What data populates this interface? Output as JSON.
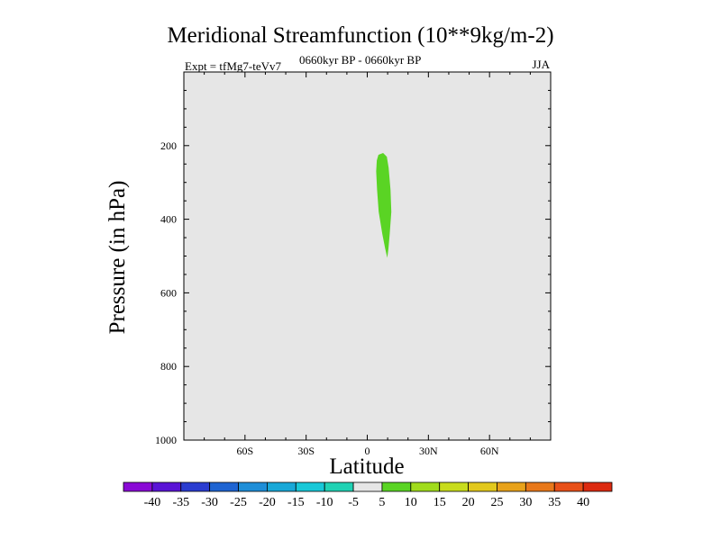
{
  "chart_data": {
    "type": "heatmap",
    "title": "Meridional Streamfunction (10**9kg/m-2)",
    "subtitle_left": "Expt = tfMg7-teVv7",
    "subtitle_center": "0660kyr BP - 0660kyr BP",
    "subtitle_right": "JJA",
    "xlabel": "Latitude",
    "ylabel": "Pressure (in hPa)",
    "xlim": [
      -90,
      90
    ],
    "ylim": [
      0,
      1000
    ],
    "y_inverted": true,
    "x_ticks": [
      {
        "value": -60,
        "label": "60S"
      },
      {
        "value": -30,
        "label": "30S"
      },
      {
        "value": 0,
        "label": "0"
      },
      {
        "value": 30,
        "label": "30N"
      },
      {
        "value": 60,
        "label": "60N"
      }
    ],
    "y_ticks": [
      {
        "value": 200,
        "label": "200"
      },
      {
        "value": 400,
        "label": "400"
      },
      {
        "value": 600,
        "label": "600"
      },
      {
        "value": 800,
        "label": "800"
      },
      {
        "value": 1000,
        "label": "1000"
      }
    ],
    "background_color": "#e6e6e6",
    "shaded_regions": [
      {
        "range": [
          5,
          10
        ],
        "color": "#5ad424",
        "outline": [
          [
            5.5,
            225
          ],
          [
            7.8,
            220
          ],
          [
            9.6,
            230
          ],
          [
            10.5,
            260
          ],
          [
            11.4,
            320
          ],
          [
            11.8,
            380
          ],
          [
            11.0,
            440
          ],
          [
            10.4,
            480
          ],
          [
            9.8,
            505
          ],
          [
            8.8,
            480
          ],
          [
            7.4,
            440
          ],
          [
            5.6,
            380
          ],
          [
            4.8,
            320
          ],
          [
            4.4,
            270
          ],
          [
            4.7,
            240
          ]
        ]
      }
    ],
    "colorbar": {
      "labels": [
        "-40",
        "-35",
        "-30",
        "-25",
        "-20",
        "-15",
        "-10",
        "-5",
        "5",
        "10",
        "15",
        "20",
        "25",
        "30",
        "35",
        "40"
      ],
      "colors": [
        "#8a0ad6",
        "#5a14d6",
        "#2a3cd0",
        "#1e64d2",
        "#1e8ed8",
        "#18a8d8",
        "#18c8d8",
        "#20d2b4",
        "#e6e6e6",
        "#5ad424",
        "#a0dc1c",
        "#c8dc1c",
        "#e2c81c",
        "#e8a21a",
        "#e8781a",
        "#e85018",
        "#dc2a10"
      ]
    }
  }
}
